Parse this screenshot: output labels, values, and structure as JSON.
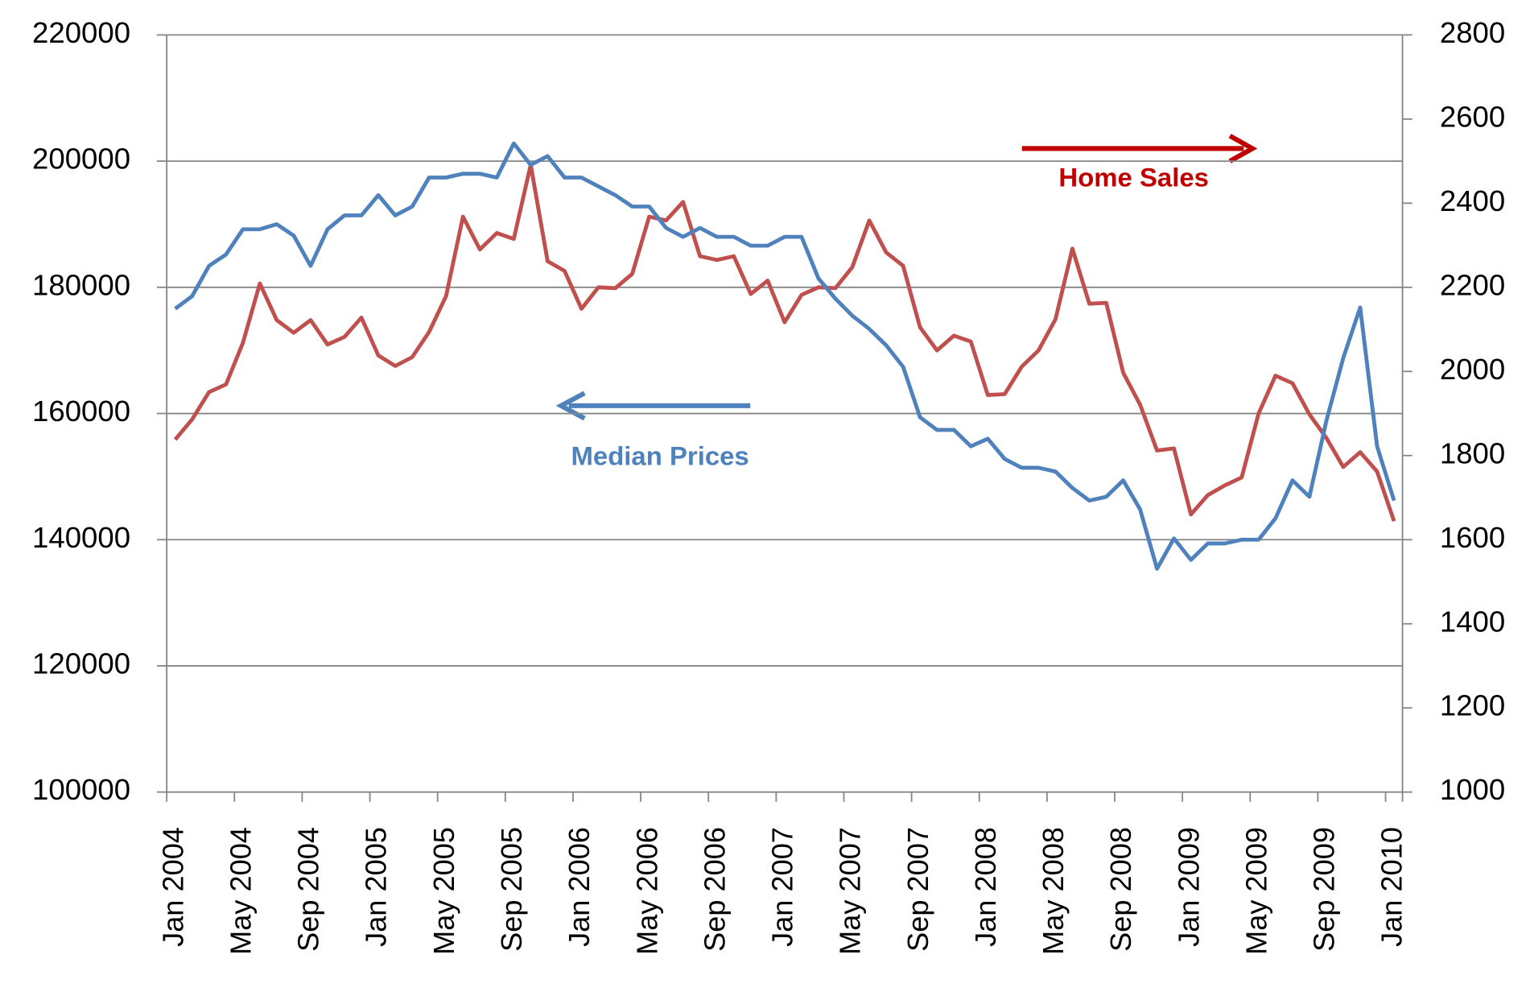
{
  "chart_data": {
    "type": "line",
    "categories": [
      "Jan 2004",
      null,
      null,
      null,
      "May 2004",
      null,
      null,
      null,
      "Sep 2004",
      null,
      null,
      null,
      "Jan 2005",
      null,
      null,
      null,
      "May 2005",
      null,
      null,
      null,
      "Sep 2005",
      null,
      null,
      null,
      "Jan 2006",
      null,
      null,
      null,
      "May 2006",
      null,
      null,
      null,
      "Sep 2006",
      null,
      null,
      null,
      "Jan 2007",
      null,
      null,
      null,
      "May 2007",
      null,
      null,
      null,
      "Sep 2007",
      null,
      null,
      null,
      "Jan 2008",
      null,
      null,
      null,
      "May 2008",
      null,
      null,
      null,
      "Sep 2008",
      null,
      null,
      null,
      "Jan 2009",
      null,
      null,
      null,
      "May 2009",
      null,
      null,
      null,
      "Sep 2009",
      null,
      null,
      null,
      "Jan 2010"
    ],
    "series": [
      {
        "name": "Median Prices",
        "color": "#4f81bd",
        "axis": "y",
        "values": [
          176600,
          178600,
          183400,
          185200,
          189200,
          189200,
          190000,
          188200,
          183400,
          189200,
          191400,
          191400,
          194600,
          191400,
          192800,
          197400,
          197400,
          198000,
          198000,
          197400,
          202800,
          199400,
          200800,
          197400,
          197400,
          196000,
          194600,
          192800,
          192800,
          189400,
          188000,
          189400,
          188000,
          188000,
          186600,
          186600,
          188000,
          188000,
          181400,
          178200,
          175500,
          173400,
          170800,
          167400,
          159400,
          157400,
          157400,
          154800,
          156000,
          152800,
          151400,
          151400,
          150800,
          148200,
          146200,
          146800,
          149400,
          144800,
          135400,
          140200,
          136800,
          139400,
          139400,
          140000,
          140000,
          143400,
          149400,
          146800,
          158800,
          168800,
          176800,
          154800,
          146200
        ]
      },
      {
        "name": "Home Sales",
        "color": "#c0504d",
        "axis": "y2",
        "values": [
          1838,
          1886,
          1951,
          1969,
          2068,
          2209,
          2122,
          2092,
          2122,
          2064,
          2082,
          2128,
          2038,
          2013,
          2034,
          2094,
          2179,
          2368,
          2290,
          2329,
          2315,
          2491,
          2262,
          2239,
          2149,
          2200,
          2198,
          2232,
          2368,
          2359,
          2403,
          2274,
          2265,
          2274,
          2184,
          2216,
          2117,
          2182,
          2200,
          2198,
          2248,
          2359,
          2283,
          2251,
          2105,
          2050,
          2085,
          2071,
          1944,
          1946,
          2011,
          2050,
          2124,
          2292,
          2161,
          2163,
          1997,
          1921,
          1812,
          1817,
          1660,
          1706,
          1729,
          1748,
          1900,
          1990,
          1972,
          1898,
          1842,
          1773,
          1808,
          1762,
          1644
        ]
      }
    ],
    "ylim": [
      100000,
      220000
    ],
    "yticks": [
      100000,
      120000,
      140000,
      160000,
      180000,
      200000,
      220000
    ],
    "y2lim": [
      1000,
      2800
    ],
    "y2ticks": [
      1000,
      1200,
      1400,
      1600,
      1800,
      2000,
      2200,
      2400,
      2600,
      2800
    ],
    "grid": true,
    "annotations": [
      {
        "text": "Median Prices",
        "color": "#4f81bd"
      },
      {
        "text": "Home Sales",
        "color": "#c00000"
      }
    ]
  }
}
